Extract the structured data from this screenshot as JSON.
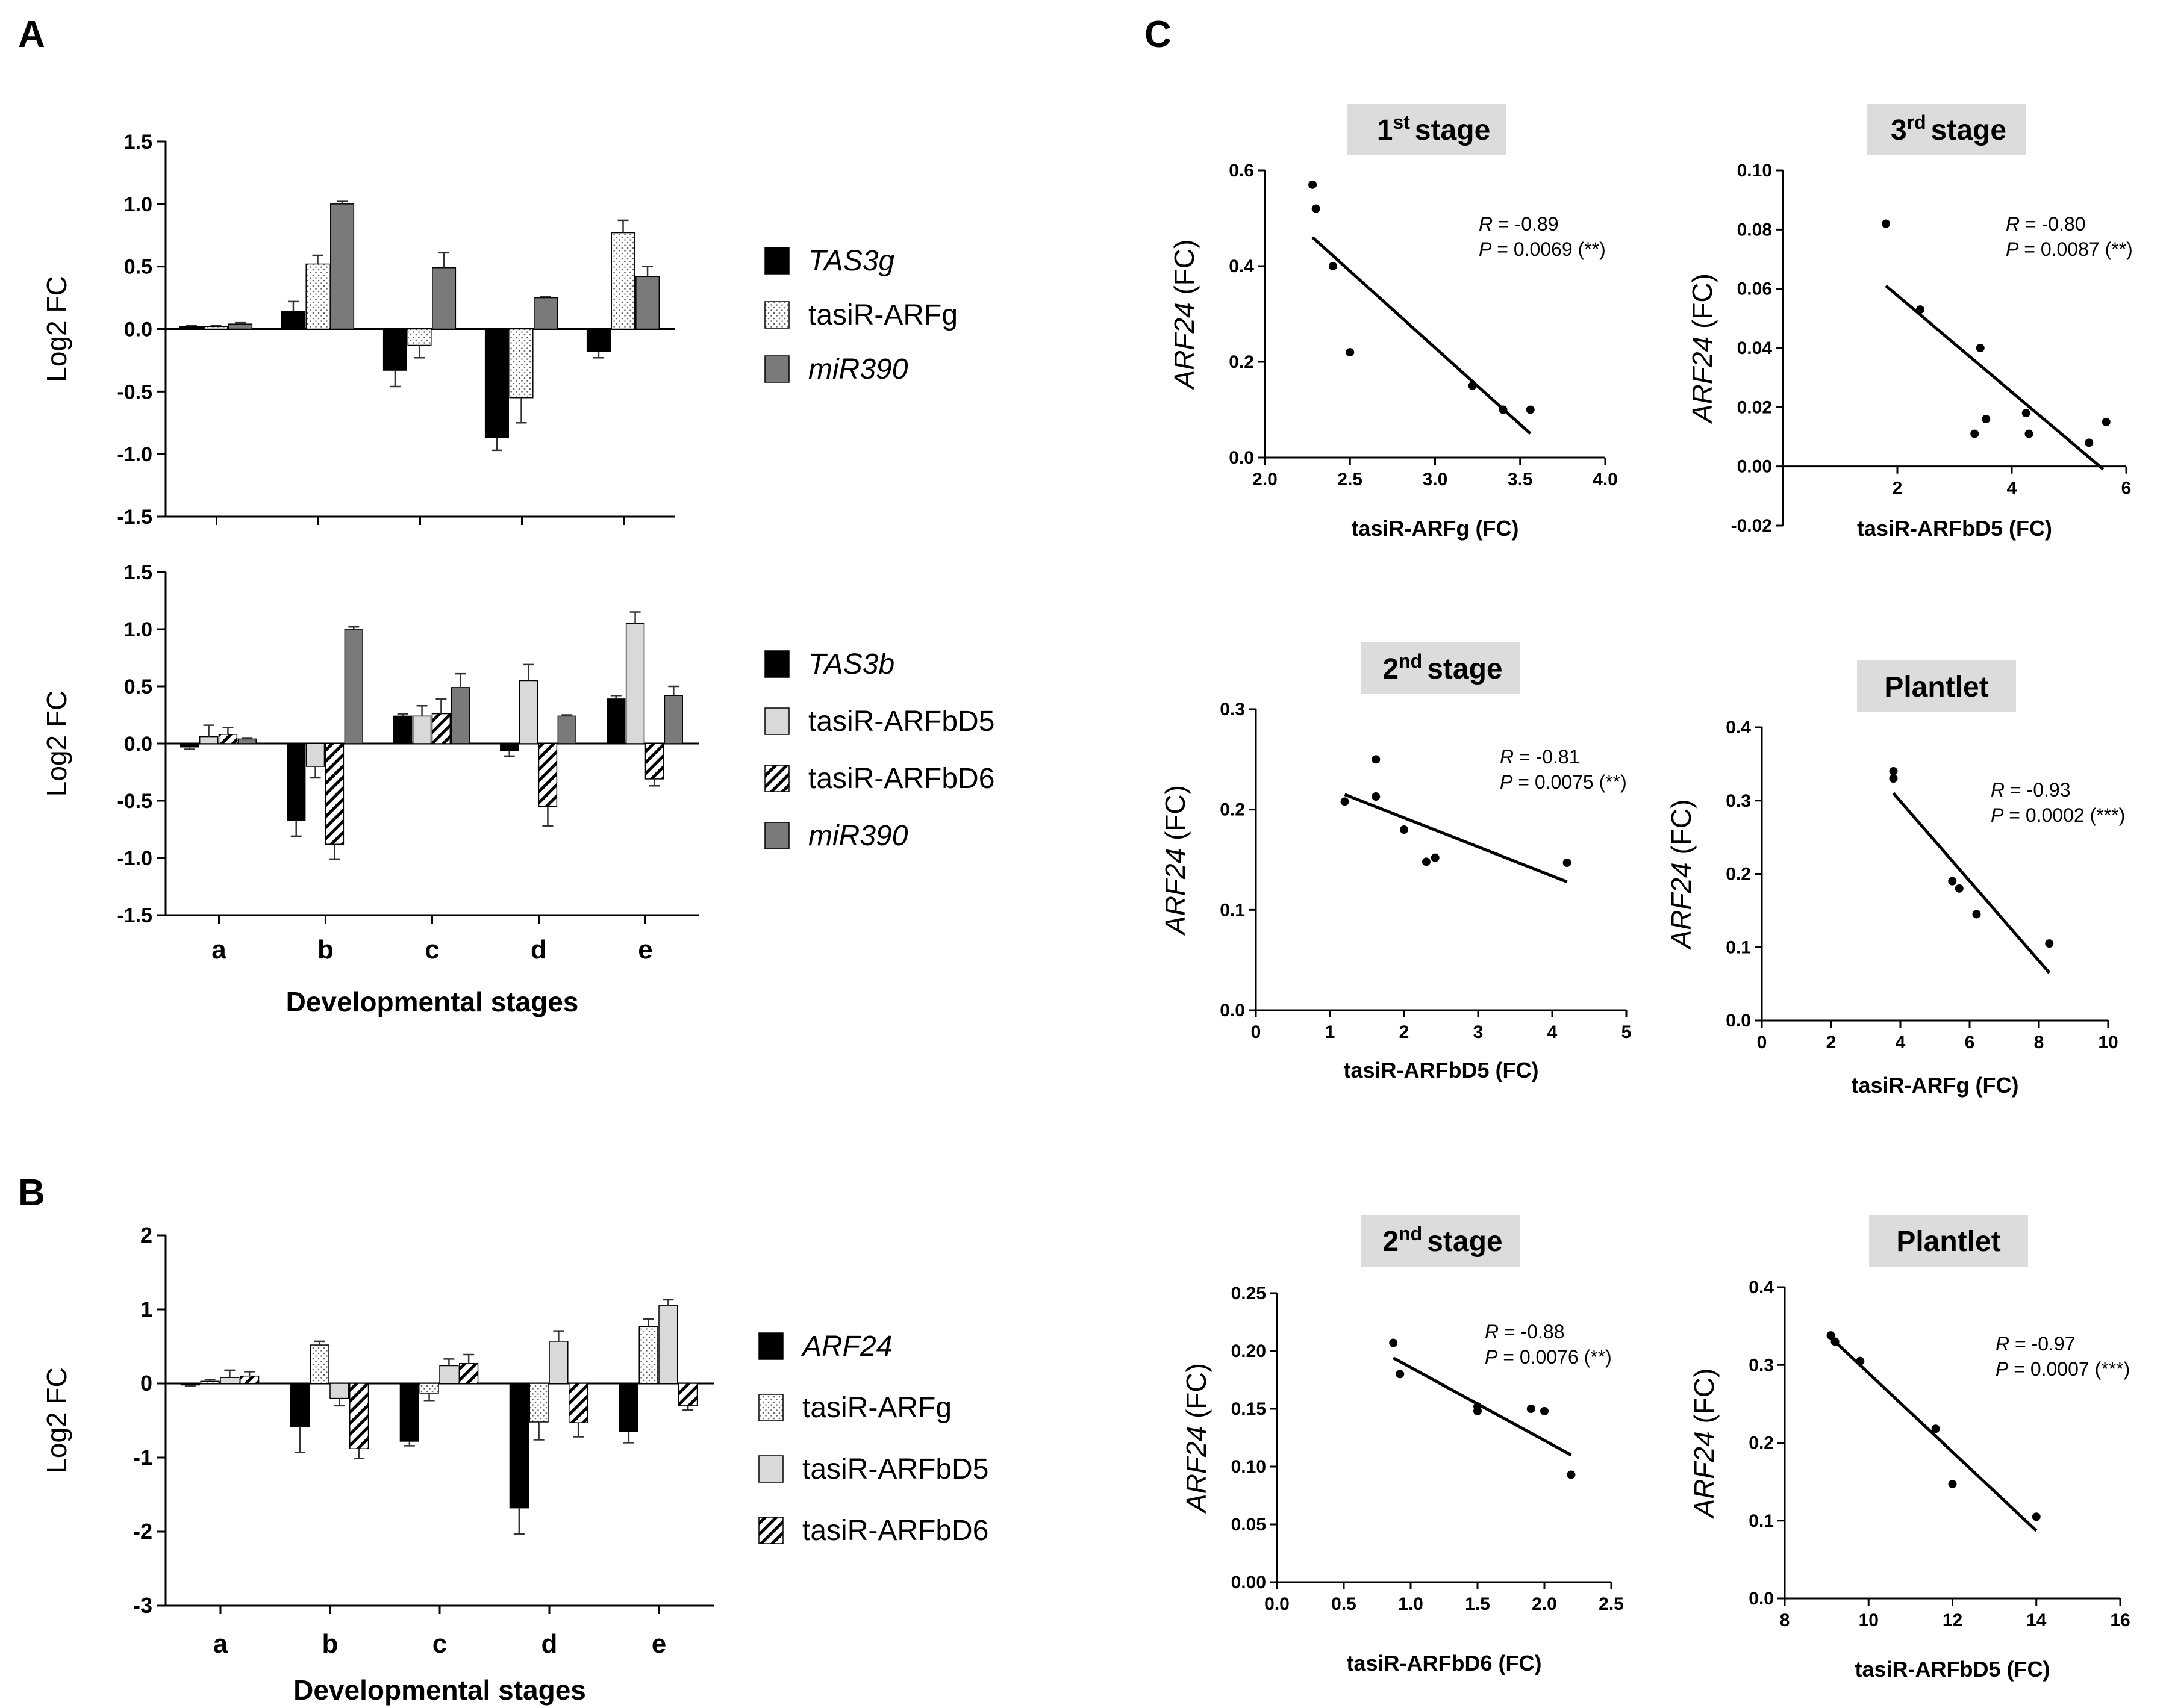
{
  "panels": {
    "A": "A",
    "B": "B",
    "C": "C"
  },
  "colors": {
    "black": "#000000",
    "dark_grey": "#7a7a7a",
    "light_grey": "#d9d9d9",
    "stage_box": "#dcdcdc"
  },
  "chart_data": [
    {
      "id": "A1",
      "type": "bar",
      "ylabel": "Log2 FC",
      "xlabel": "",
      "ylim": [
        -1.5,
        1.5
      ],
      "yticks": [
        "1.5",
        "1.0",
        "0.5",
        "0.0",
        "-0.5",
        "-1.0",
        "-1.5"
      ],
      "categories": [
        "a",
        "b",
        "c",
        "d",
        "e"
      ],
      "show_categories": false,
      "series": [
        {
          "name": "TAS3g",
          "style": "black",
          "italic": true,
          "values": [
            0.02,
            0.14,
            -0.33,
            -0.87,
            -0.18
          ],
          "errors": [
            0.01,
            0.08,
            0.13,
            0.1,
            0.05
          ]
        },
        {
          "name": "tasiR-ARFg",
          "style": "dots",
          "italic": false,
          "values": [
            0.02,
            0.52,
            -0.13,
            -0.55,
            0.77
          ],
          "errors": [
            0.01,
            0.07,
            0.1,
            0.2,
            0.1
          ]
        },
        {
          "name": "miR390",
          "style": "dark",
          "italic": true,
          "values": [
            0.04,
            1.0,
            0.49,
            0.25,
            0.42
          ],
          "errors": [
            0.01,
            0.02,
            0.12,
            0.01,
            0.08
          ]
        }
      ]
    },
    {
      "id": "A2",
      "type": "bar",
      "ylabel": "Log2 FC",
      "xlabel": "Developmental stages",
      "ylim": [
        -1.5,
        1.5
      ],
      "yticks": [
        "1.5",
        "1.0",
        "0.5",
        "0.0",
        "-0.5",
        "-1.0",
        "-1.5"
      ],
      "categories": [
        "a",
        "b",
        "c",
        "d",
        "e"
      ],
      "show_categories": true,
      "series": [
        {
          "name": "TAS3b",
          "style": "black",
          "italic": true,
          "values": [
            -0.03,
            -0.67,
            0.24,
            -0.06,
            0.39
          ],
          "errors": [
            0.02,
            0.14,
            0.02,
            0.05,
            0.03
          ]
        },
        {
          "name": "tasiR-ARFbD5",
          "style": "light",
          "italic": false,
          "values": [
            0.06,
            -0.2,
            0.24,
            0.55,
            1.05
          ],
          "errors": [
            0.1,
            0.1,
            0.09,
            0.14,
            0.1
          ]
        },
        {
          "name": "tasiR-ARFbD6",
          "style": "hatch",
          "italic": false,
          "values": [
            0.08,
            -0.88,
            0.26,
            -0.55,
            -0.31
          ],
          "errors": [
            0.06,
            0.13,
            0.13,
            0.17,
            0.06
          ]
        },
        {
          "name": "miR390",
          "style": "dark",
          "italic": true,
          "values": [
            0.04,
            1.0,
            0.49,
            0.24,
            0.42
          ],
          "errors": [
            0.01,
            0.02,
            0.12,
            0.01,
            0.08
          ]
        }
      ]
    },
    {
      "id": "B",
      "type": "bar",
      "ylabel": "Log2 FC",
      "xlabel": "Developmental stages",
      "ylim": [
        -3,
        2
      ],
      "yticks": [
        "2",
        "1",
        "0",
        "-1",
        "-2",
        "-3"
      ],
      "categories": [
        "a",
        "b",
        "c",
        "d",
        "e"
      ],
      "show_categories": true,
      "series": [
        {
          "name": "ARF24",
          "style": "black",
          "italic": true,
          "values": [
            -0.02,
            -0.58,
            -0.78,
            -1.68,
            -0.65
          ],
          "errors": [
            0.01,
            0.35,
            0.06,
            0.35,
            0.15
          ]
        },
        {
          "name": "tasiR-ARFg",
          "style": "dots",
          "italic": false,
          "values": [
            0.03,
            0.52,
            -0.13,
            -0.52,
            0.77
          ],
          "errors": [
            0.02,
            0.05,
            0.1,
            0.24,
            0.1
          ]
        },
        {
          "name": "tasiR-ARFbD5",
          "style": "light",
          "italic": false,
          "values": [
            0.08,
            -0.2,
            0.24,
            0.57,
            1.05
          ],
          "errors": [
            0.1,
            0.1,
            0.09,
            0.14,
            0.08
          ]
        },
        {
          "name": "tasiR-ARFbD6",
          "style": "hatch",
          "italic": false,
          "values": [
            0.1,
            -0.88,
            0.27,
            -0.53,
            -0.3
          ],
          "errors": [
            0.06,
            0.13,
            0.12,
            0.19,
            0.06
          ]
        }
      ]
    },
    {
      "id": "C1",
      "type": "scatter",
      "stage_main": "1",
      "stage_sup": "st",
      "stage_suffix": "stage",
      "xlabel": "tasiR-ARFg (FC)",
      "ylabel_italic": "ARF24",
      "ylabel_rest": " (FC)",
      "xlim": [
        2.0,
        4.0
      ],
      "ylim": [
        0.0,
        0.6
      ],
      "xticks": [
        2.0,
        2.5,
        3.0,
        3.5,
        4.0
      ],
      "xtick_labels": [
        "2.0",
        "2.5",
        "3.0",
        "3.5",
        "4.0"
      ],
      "yticks": [
        0.0,
        0.2,
        0.4,
        0.6
      ],
      "ytick_labels": [
        "0.0",
        "0.2",
        "0.4",
        "0.6"
      ],
      "x": [
        2.28,
        2.3,
        2.4,
        2.5,
        3.22,
        3.4,
        3.56
      ],
      "y": [
        0.57,
        0.52,
        0.4,
        0.22,
        0.15,
        0.1,
        0.1
      ],
      "fit": [
        [
          2.28,
          0.46
        ],
        [
          3.56,
          0.05
        ]
      ],
      "r_label": "R",
      "r_text": " = -0.89",
      "p_label": "P",
      "p_text": " = 0.0069 (**)"
    },
    {
      "id": "C2",
      "type": "scatter",
      "stage_main": "3",
      "stage_sup": "rd",
      "stage_suffix": "stage",
      "xlabel": "tasiR-ARFbD5 (FC)",
      "ylabel_italic": "ARF24",
      "ylabel_rest": " (FC)",
      "xlim": [
        0,
        6
      ],
      "ylim": [
        -0.02,
        0.1
      ],
      "xticks": [
        2,
        4,
        6
      ],
      "xtick_labels": [
        "2",
        "4",
        "6"
      ],
      "yticks": [
        -0.02,
        0.0,
        0.02,
        0.04,
        0.06,
        0.08,
        0.1
      ],
      "ytick_labels": [
        "-0.02",
        "0.00",
        "0.02",
        "0.04",
        "0.06",
        "0.08",
        "0.10"
      ],
      "x": [
        1.8,
        2.4,
        3.35,
        3.45,
        3.55,
        4.25,
        4.3,
        5.35,
        5.65
      ],
      "y": [
        0.082,
        0.053,
        0.011,
        0.04,
        0.016,
        0.018,
        0.011,
        0.008,
        0.015
      ],
      "fit": [
        [
          1.8,
          0.061
        ],
        [
          5.6,
          -0.001
        ]
      ],
      "r_label": "R",
      "r_text": " = -0.80",
      "p_label": "P",
      "p_text": " = 0.0087 (**)"
    },
    {
      "id": "C3",
      "type": "scatter",
      "stage_main": "2",
      "stage_sup": "nd",
      "stage_suffix": "stage",
      "xlabel": "tasiR-ARFbD5 (FC)",
      "ylabel_italic": "ARF24",
      "ylabel_rest": " (FC)",
      "xlim": [
        0,
        5
      ],
      "ylim": [
        0.0,
        0.3
      ],
      "xticks": [
        0,
        1,
        2,
        3,
        4,
        5
      ],
      "xtick_labels": [
        "0",
        "1",
        "2",
        "3",
        "4",
        "5"
      ],
      "yticks": [
        0.0,
        0.1,
        0.2,
        0.3
      ],
      "ytick_labels": [
        "0.0",
        "0.1",
        "0.2",
        "0.3"
      ],
      "x": [
        1.2,
        1.62,
        1.62,
        2.0,
        2.3,
        2.42,
        4.2
      ],
      "y": [
        0.208,
        0.25,
        0.213,
        0.18,
        0.148,
        0.152,
        0.147
      ],
      "fit": [
        [
          1.2,
          0.215
        ],
        [
          4.2,
          0.128
        ]
      ],
      "r_label": "R",
      "r_text": " = -0.81",
      "p_label": "P",
      "p_text": " = 0.0075 (**)"
    },
    {
      "id": "C4",
      "type": "scatter",
      "stage_main": "Plantlet",
      "stage_sup": "",
      "stage_suffix": "",
      "xlabel": "tasiR-ARFg (FC)",
      "ylabel_italic": "ARF24",
      "ylabel_rest": " (FC)",
      "xlim": [
        0,
        10
      ],
      "ylim": [
        0.0,
        0.4
      ],
      "xticks": [
        0,
        2,
        4,
        6,
        8,
        10
      ],
      "xtick_labels": [
        "0",
        "2",
        "4",
        "6",
        "8",
        "10"
      ],
      "yticks": [
        0.0,
        0.1,
        0.2,
        0.3,
        0.4
      ],
      "ytick_labels": [
        "0.0",
        "0.1",
        "0.2",
        "0.3",
        "0.4"
      ],
      "x": [
        3.8,
        3.8,
        5.5,
        5.7,
        6.2,
        8.3
      ],
      "y": [
        0.34,
        0.33,
        0.19,
        0.18,
        0.145,
        0.105
      ],
      "fit": [
        [
          3.8,
          0.31
        ],
        [
          8.3,
          0.065
        ]
      ],
      "r_label": "R",
      "r_text": " = -0.93",
      "p_label": "P",
      "p_text": " = 0.0002 (***)"
    },
    {
      "id": "C5",
      "type": "scatter",
      "stage_main": "2",
      "stage_sup": "nd",
      "stage_suffix": "stage",
      "xlabel": "tasiR-ARFbD6 (FC)",
      "ylabel_italic": "ARF24",
      "ylabel_rest": " (FC)",
      "xlim": [
        0.0,
        2.5
      ],
      "ylim": [
        0.0,
        0.25
      ],
      "xticks": [
        0.0,
        0.5,
        1.0,
        1.5,
        2.0,
        2.5
      ],
      "xtick_labels": [
        "0.0",
        "0.5",
        "1.0",
        "1.5",
        "2.0",
        "2.5"
      ],
      "yticks": [
        0.0,
        0.05,
        0.1,
        0.15,
        0.2,
        0.25
      ],
      "ytick_labels": [
        "0.00",
        "0.05",
        "0.10",
        "0.15",
        "0.20",
        "0.25"
      ],
      "x": [
        0.87,
        0.92,
        1.5,
        1.5,
        1.9,
        2.0,
        2.2
      ],
      "y": [
        0.207,
        0.18,
        0.148,
        0.152,
        0.15,
        0.148,
        0.093
      ],
      "fit": [
        [
          0.87,
          0.194
        ],
        [
          2.2,
          0.11
        ]
      ],
      "r_label": "R",
      "r_text": " = -0.88",
      "p_label": "P",
      "p_text": " = 0.0076 (**)"
    },
    {
      "id": "C6",
      "type": "scatter",
      "stage_main": "Plantlet",
      "stage_sup": "",
      "stage_suffix": "",
      "xlabel": "tasiR-ARFbD5 (FC)",
      "ylabel_italic": "ARF24",
      "ylabel_rest": " (FC)",
      "xlim": [
        8,
        16
      ],
      "ylim": [
        0.0,
        0.4
      ],
      "xticks": [
        8,
        10,
        12,
        14,
        16
      ],
      "xtick_labels": [
        "8",
        "10",
        "12",
        "14",
        "16"
      ],
      "yticks": [
        0.0,
        0.1,
        0.2,
        0.3,
        0.4
      ],
      "ytick_labels": [
        "0.0",
        "0.1",
        "0.2",
        "0.3",
        "0.4"
      ],
      "x": [
        9.1,
        9.2,
        9.8,
        11.6,
        12.0,
        14.0
      ],
      "y": [
        0.338,
        0.33,
        0.305,
        0.218,
        0.147,
        0.105
      ],
      "fit": [
        [
          9.1,
          0.335
        ],
        [
          14.0,
          0.087
        ]
      ],
      "r_label": "R",
      "r_text": " = -0.97",
      "p_label": "P",
      "p_text": " = 0.0007 (***)"
    }
  ]
}
